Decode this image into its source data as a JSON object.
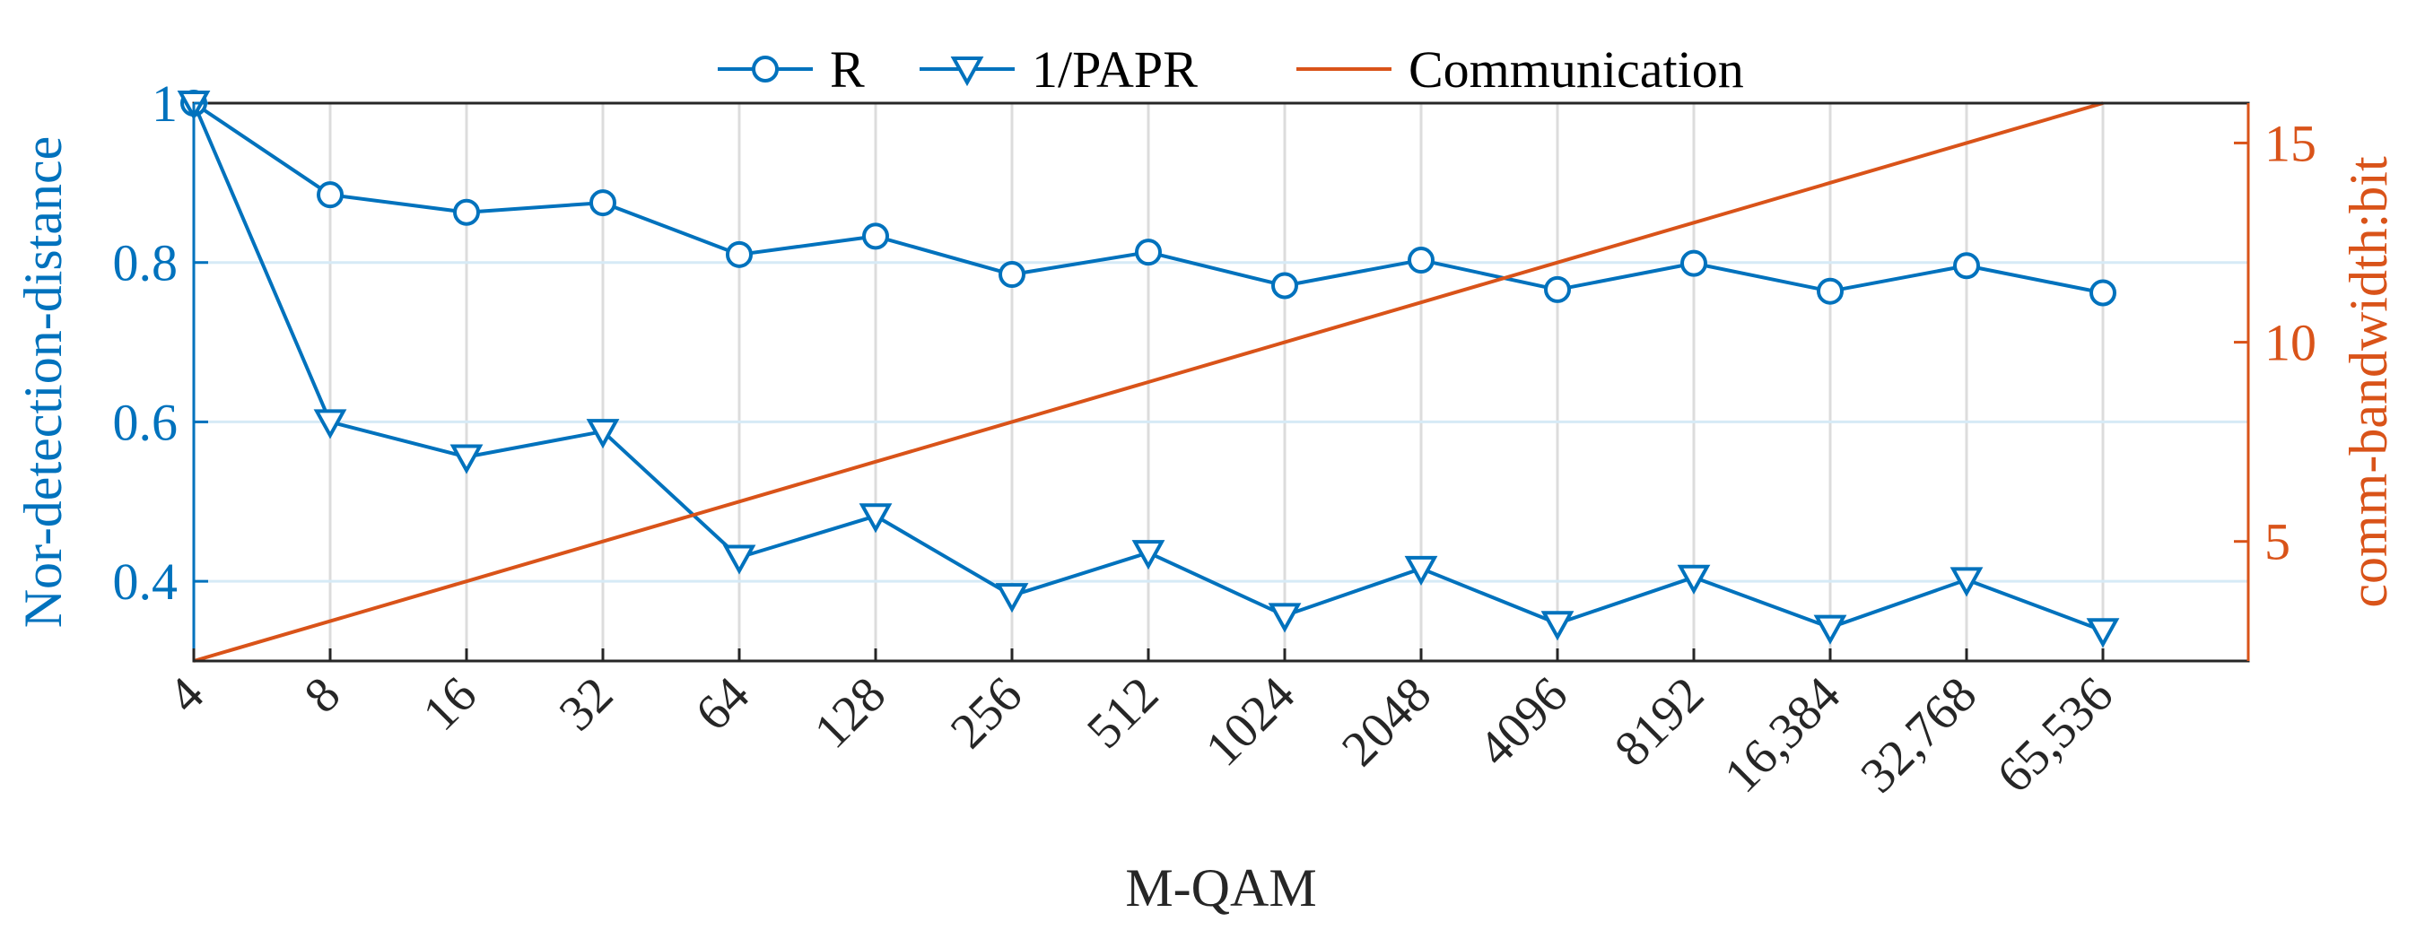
{
  "chart_data": {
    "type": "line",
    "title": "",
    "xlabel": "M-QAM",
    "ylabel_left": "Nor-detection-distance",
    "ylabel_right": "comm-bandwidth:bit",
    "categories": [
      "4",
      "8",
      "16",
      "32",
      "64",
      "128",
      "256",
      "512",
      "1024",
      "2048",
      "4096",
      "8192",
      "16,384",
      "32,768",
      "65,536"
    ],
    "ylim_left": [
      0.3,
      1.0
    ],
    "yticks_left": [
      0.4,
      0.6,
      0.8,
      1
    ],
    "ytick_labels_left": [
      "0.4",
      "0.6",
      "0.8",
      "1"
    ],
    "ylim_right": [
      2,
      16
    ],
    "yticks_right": [
      5,
      10,
      15
    ],
    "ytick_labels_right": [
      "5",
      "10",
      "15"
    ],
    "grid": true,
    "legend_position": "top",
    "series": [
      {
        "name": "R",
        "axis": "left",
        "marker": "circle",
        "color": "#0072BD",
        "values": [
          1.0,
          0.885,
          0.863,
          0.875,
          0.81,
          0.833,
          0.785,
          0.813,
          0.771,
          0.803,
          0.766,
          0.799,
          0.764,
          0.796,
          0.762
        ]
      },
      {
        "name": "1/PAPR",
        "axis": "left",
        "marker": "triangle-down",
        "color": "#0072BD",
        "values": [
          1.0,
          0.6,
          0.556,
          0.588,
          0.43,
          0.482,
          0.382,
          0.436,
          0.357,
          0.416,
          0.347,
          0.405,
          0.342,
          0.402,
          0.338
        ]
      },
      {
        "name": "Communication",
        "axis": "right",
        "marker": "none",
        "color": "#D95319",
        "values": [
          2,
          3,
          4,
          5,
          6,
          7,
          8,
          9,
          10,
          11,
          12,
          13,
          14,
          15,
          16
        ]
      }
    ]
  }
}
